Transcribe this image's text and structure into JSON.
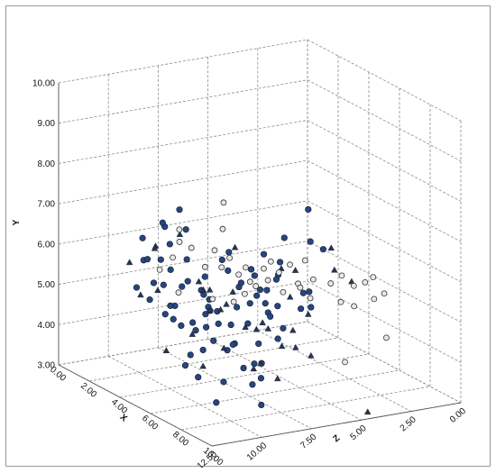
{
  "chart_data": {
    "type": "scatter3d",
    "axes": {
      "y": {
        "label": "Y",
        "range": [
          3.0,
          10.0
        ],
        "ticks": [
          "3.00",
          "4.00",
          "5.00",
          "6.00",
          "7.00",
          "8.00",
          "9.00",
          "10.00"
        ]
      },
      "x": {
        "label": "X",
        "range": [
          0.0,
          10.0
        ],
        "ticks": [
          "0.00",
          "2.00",
          "4.00",
          "6.00",
          "8.00",
          "10.00"
        ]
      },
      "z": {
        "label": "Z",
        "range": [
          0.0,
          12.5
        ],
        "ticks": [
          "0.00",
          "2.50",
          "5.00",
          "7.50",
          "10.00",
          "12.50"
        ]
      }
    },
    "grid": true,
    "colors": {
      "filled_circle": "#27467e",
      "circle_edge": "#101a30",
      "triangle": "#2a3550",
      "open_circle": "#e8e8e8",
      "open_edge": "#333333"
    },
    "series": [
      {
        "marker": "filled-circle",
        "points": [
          [
            4.0,
            2.2,
            5.4
          ],
          [
            3.5,
            3.1,
            5.0
          ],
          [
            4.2,
            2.8,
            6.0
          ],
          [
            3.0,
            4.1,
            7.4
          ],
          [
            4.4,
            3.3,
            6.6
          ],
          [
            2.8,
            4.0,
            6.0
          ],
          [
            3.6,
            3.6,
            6.8
          ],
          [
            4.5,
            3.0,
            5.8
          ],
          [
            3.2,
            4.5,
            7.0
          ],
          [
            2.5,
            4.0,
            6.4
          ],
          [
            3.8,
            3.2,
            5.6
          ],
          [
            4.6,
            4.0,
            7.2
          ],
          [
            4.0,
            4.0,
            7.8
          ],
          [
            2.8,
            3.5,
            5.9
          ],
          [
            3.4,
            4.7,
            7.6
          ],
          [
            5.0,
            5.0,
            7.4
          ],
          [
            5.2,
            4.6,
            7.0
          ],
          [
            5.6,
            5.2,
            7.2
          ],
          [
            6.0,
            5.0,
            6.6
          ],
          [
            5.4,
            5.6,
            7.6
          ],
          [
            6.2,
            4.6,
            6.0
          ],
          [
            5.8,
            5.8,
            7.8
          ],
          [
            6.4,
            5.0,
            6.8
          ],
          [
            5.2,
            6.0,
            8.0
          ],
          [
            5.0,
            5.2,
            6.4
          ],
          [
            6.2,
            6.2,
            7.6
          ],
          [
            6.0,
            5.6,
            7.0
          ],
          [
            5.6,
            6.4,
            8.6
          ],
          [
            6.4,
            6.0,
            6.4
          ],
          [
            5.4,
            5.4,
            6.2
          ],
          [
            6.6,
            5.4,
            7.2
          ],
          [
            6.0,
            6.2,
            6.0
          ],
          [
            5.0,
            6.4,
            7.8
          ],
          [
            4.6,
            5.6,
            6.2
          ],
          [
            5.6,
            4.2,
            5.8
          ],
          [
            6.8,
            6.0,
            6.8
          ],
          [
            7.0,
            5.6,
            5.6
          ],
          [
            6.5,
            6.6,
            7.2
          ],
          [
            4.8,
            4.8,
            5.2
          ],
          [
            6.8,
            7.0,
            6.4
          ],
          [
            5.8,
            4.9,
            4.8
          ],
          [
            6.8,
            7.6,
            5.2
          ],
          [
            7.0,
            6.6,
            4.6
          ],
          [
            6.2,
            5.0,
            4.6
          ],
          [
            6.6,
            5.5,
            5.0
          ],
          [
            7.2,
            6.9,
            5.4
          ],
          [
            2.0,
            3.2,
            4.0
          ],
          [
            1.4,
            5.0,
            8.8
          ],
          [
            1.0,
            5.5,
            9.0
          ],
          [
            2.0,
            4.5,
            8.2
          ],
          [
            1.6,
            5.6,
            8.6
          ],
          [
            0.8,
            4.8,
            9.2
          ],
          [
            1.8,
            6.0,
            8.3
          ],
          [
            1.2,
            5.2,
            7.8
          ],
          [
            2.2,
            5.0,
            8.0
          ],
          [
            1.4,
            4.6,
            9.0
          ],
          [
            1.6,
            6.4,
            8.4
          ],
          [
            0.8,
            6.0,
            8.9
          ],
          [
            1.0,
            4.8,
            8.0
          ],
          [
            2.0,
            5.6,
            7.6
          ],
          [
            1.2,
            6.4,
            8.2
          ],
          [
            1.8,
            5.0,
            7.4
          ],
          [
            2.4,
            5.2,
            7.0
          ],
          [
            1.5,
            4.2,
            8.3
          ],
          [
            0.6,
            5.4,
            8.5
          ],
          [
            2.2,
            6.4,
            7.8
          ],
          [
            1.0,
            6.6,
            7.2
          ],
          [
            1.6,
            3.9,
            7.0
          ],
          [
            0.8,
            4.2,
            7.5
          ],
          [
            1.8,
            4.6,
            6.6
          ],
          [
            0.6,
            3.8,
            7.2
          ],
          [
            1.2,
            3.0,
            6.8
          ],
          [
            0.5,
            3.4,
            6.0
          ],
          [
            1.4,
            4.0,
            6.2
          ],
          [
            0.6,
            4.4,
            5.8
          ],
          [
            0.4,
            3.8,
            5.2
          ],
          [
            0.2,
            3.5,
            6.5
          ],
          [
            0.6,
            2.6,
            6.6
          ],
          [
            0.2,
            2.8,
            5.4
          ],
          [
            0.4,
            2.2,
            5.8
          ],
          [
            0.1,
            4.0,
            5.0
          ],
          [
            0.8,
            1.6,
            5.2
          ],
          [
            0.5,
            2.0,
            4.6
          ]
        ]
      },
      {
        "marker": "triangle",
        "points": [
          [
            3.0,
            4.5,
            7.2
          ],
          [
            5.0,
            3.5,
            6.2
          ],
          [
            4.0,
            4.2,
            6.2
          ],
          [
            3.5,
            3.0,
            5.4
          ],
          [
            5.5,
            4.5,
            6.8
          ],
          [
            4.8,
            3.0,
            5.2
          ],
          [
            5.6,
            4.0,
            5.6
          ],
          [
            6.0,
            4.6,
            6.6
          ],
          [
            5.2,
            3.8,
            4.6
          ],
          [
            6.4,
            5.4,
            5.8
          ],
          [
            7.0,
            6.2,
            6.0
          ],
          [
            4.2,
            4.8,
            7.6
          ],
          [
            3.6,
            5.2,
            8.0
          ],
          [
            5.4,
            6.6,
            7.8
          ],
          [
            6.6,
            6.2,
            6.4
          ],
          [
            2.6,
            3.4,
            6.2
          ],
          [
            6.2,
            3.8,
            4.6
          ],
          [
            6.8,
            5.0,
            5.2
          ],
          [
            5.8,
            4.4,
            5.2
          ],
          [
            5.0,
            5.4,
            7.6
          ],
          [
            4.6,
            4.4,
            5.8
          ],
          [
            3.8,
            4.8,
            7.0
          ],
          [
            7.0,
            6.6,
            4.2
          ],
          [
            2.0,
            5.0,
            7.0
          ],
          [
            1.8,
            6.2,
            7.8
          ],
          [
            1.0,
            5.8,
            8.4
          ],
          [
            0.8,
            4.6,
            9.0
          ],
          [
            0.4,
            3.0,
            7.4
          ],
          [
            1.4,
            4.8,
            8.6
          ],
          [
            0.6,
            5.4,
            9.4
          ],
          [
            0.2,
            2.4,
            5.4
          ],
          [
            1.2,
            5.8,
            8.6
          ],
          [
            2.2,
            4.8,
            6.6
          ],
          [
            8.2,
            6.0,
            4.1
          ],
          [
            7.6,
            6.2,
            4.5
          ],
          [
            8.6,
            2.8,
            3.6
          ],
          [
            0.8,
            3.4,
            6.4
          ]
        ]
      },
      {
        "marker": "open-circle",
        "points": [
          [
            1.4,
            5.3,
            8.5
          ],
          [
            1.6,
            5.6,
            8.0
          ],
          [
            1.0,
            5.8,
            7.2
          ],
          [
            0.6,
            6.0,
            6.9
          ],
          [
            1.0,
            5.6,
            6.6
          ],
          [
            1.5,
            5.2,
            6.3
          ],
          [
            1.6,
            5.6,
            5.9
          ],
          [
            1.8,
            5.2,
            5.7
          ],
          [
            1.8,
            5.4,
            5.3
          ],
          [
            2.0,
            5.0,
            5.0
          ],
          [
            2.2,
            5.2,
            4.8
          ],
          [
            2.1,
            4.8,
            4.5
          ],
          [
            2.6,
            5.2,
            4.2
          ],
          [
            2.8,
            5.4,
            4.0
          ],
          [
            3.0,
            5.0,
            4.3
          ],
          [
            3.2,
            5.2,
            3.9
          ],
          [
            3.4,
            5.4,
            3.5
          ],
          [
            3.6,
            4.8,
            4.0
          ],
          [
            3.8,
            5.0,
            3.4
          ],
          [
            4.0,
            5.6,
            3.2
          ],
          [
            4.2,
            5.0,
            3.6
          ],
          [
            4.4,
            5.2,
            3.1
          ],
          [
            4.6,
            4.8,
            3.4
          ],
          [
            1.8,
            6.8,
            5.6
          ],
          [
            2.0,
            6.2,
            5.8
          ],
          [
            1.2,
            4.6,
            7.4
          ],
          [
            2.2,
            4.4,
            5.4
          ],
          [
            2.4,
            4.6,
            5.0
          ],
          [
            2.6,
            4.8,
            4.6
          ],
          [
            1.6,
            4.4,
            6.0
          ],
          [
            6.6,
            3.6,
            3.2
          ],
          [
            6.2,
            5.0,
            3.1
          ],
          [
            5.8,
            5.4,
            3.3
          ],
          [
            6.0,
            5.6,
            2.9
          ],
          [
            6.4,
            5.4,
            2.6
          ],
          [
            6.8,
            5.0,
            2.9
          ],
          [
            7.0,
            5.6,
            2.5
          ],
          [
            7.2,
            5.2,
            2.2
          ],
          [
            7.4,
            5.8,
            2.4
          ],
          [
            7.6,
            5.4,
            2.0
          ],
          [
            8.0,
            4.4,
            2.2
          ]
        ]
      }
    ]
  }
}
